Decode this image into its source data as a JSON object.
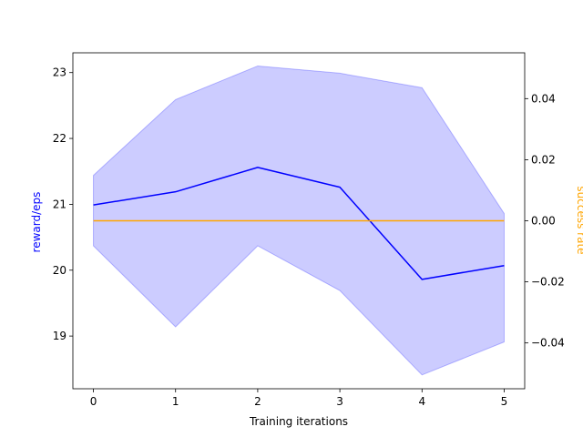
{
  "chart_data": {
    "type": "line",
    "title": "",
    "xlabel": "Training iterations",
    "ylabel_left": "reward/eps",
    "ylabel_right": "success rate",
    "x": [
      0,
      1,
      2,
      3,
      4,
      5
    ],
    "x_ticks": [
      "0",
      "1",
      "2",
      "3",
      "4",
      "5"
    ],
    "xlim": [
      -0.25,
      5.25
    ],
    "ylim_left": [
      18.2,
      23.3
    ],
    "ylim_right": [
      -0.055,
      0.055
    ],
    "y_ticks_left": [
      "19",
      "20",
      "21",
      "22",
      "23"
    ],
    "y_ticks_right": [
      "−0.04",
      "−0.02",
      "0.00",
      "0.02",
      "0.04"
    ],
    "y_ticks_left_values": [
      19,
      20,
      21,
      22,
      23
    ],
    "y_ticks_right_values": [
      -0.04,
      -0.02,
      0.0,
      0.02,
      0.04
    ],
    "series": [
      {
        "axis": "left",
        "color": "#0000ff",
        "values": [
          20.99,
          21.19,
          21.56,
          21.26,
          19.86,
          20.07
        ],
        "band_upper": [
          21.44,
          22.59,
          23.1,
          22.99,
          22.77,
          20.86
        ],
        "band_lower": [
          20.37,
          19.14,
          20.37,
          19.69,
          18.41,
          18.91
        ],
        "band_color": "#0000ff",
        "band_opacity": 0.2
      },
      {
        "axis": "right",
        "color": "#ffa500",
        "values": [
          0,
          0,
          0,
          0,
          0,
          0
        ]
      }
    ],
    "grid": false,
    "legend": "none"
  },
  "colors": {
    "left_axis_label": "#0000ff",
    "right_axis_label": "#ffa500"
  }
}
